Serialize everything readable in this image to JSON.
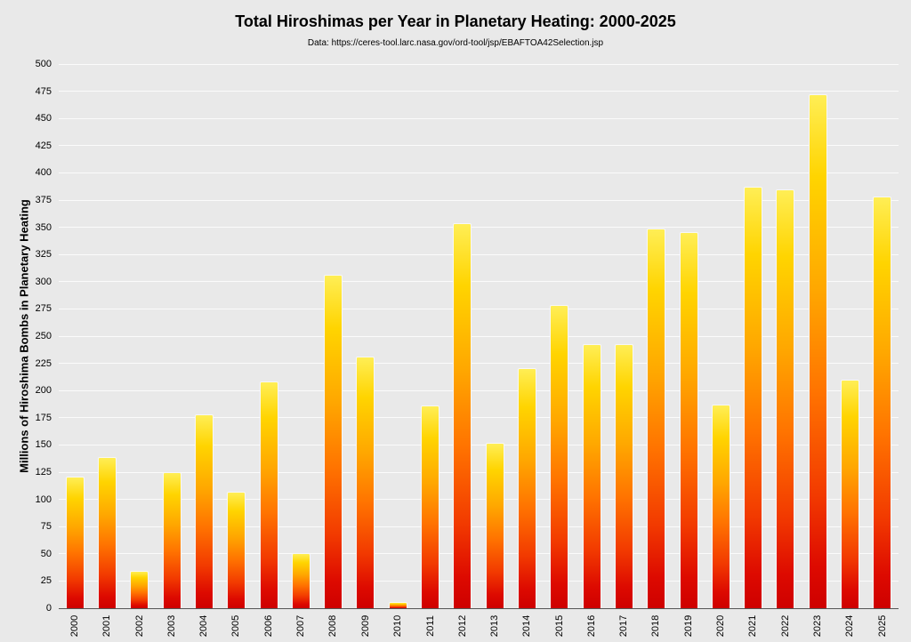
{
  "chart_data": {
    "type": "bar",
    "title": "Total Hiroshimas per Year in Planetary Heating: 2000-2025",
    "subtitle": "Data: https://ceres-tool.larc.nasa.gov/ord-tool/jsp/EBAFTOA42Selection.jsp",
    "ylabel": "Millions of Hiroshima Bombs in Planetary Heating",
    "xlabel": "",
    "categories": [
      "2000",
      "2001",
      "2002",
      "2003",
      "2004",
      "2005",
      "2006",
      "2007",
      "2008",
      "2009",
      "2010",
      "2011",
      "2012",
      "2013",
      "2014",
      "2015",
      "2016",
      "2017",
      "2018",
      "2019",
      "2020",
      "2021",
      "2022",
      "2023",
      "2024",
      "2025"
    ],
    "values": [
      121,
      139,
      34,
      125,
      178,
      107,
      208,
      51,
      306,
      231,
      6,
      186,
      354,
      152,
      221,
      279,
      243,
      243,
      349,
      346,
      187,
      387,
      385,
      472,
      210,
      378
    ],
    "ylim": [
      0,
      500
    ],
    "ytick_step": 25,
    "grid": true,
    "legend_position": "none",
    "colors": {
      "bar_top": "#ffee55",
      "bar_bottom": "#ce0000",
      "bar_border": "#f7f7f7",
      "gridline": "rgba(255,255,255,0.8)",
      "plot_background_top": "#e25417",
      "plot_background_bottom": "#000000",
      "page_background": "#e9e9e9",
      "text": "#000000"
    }
  }
}
